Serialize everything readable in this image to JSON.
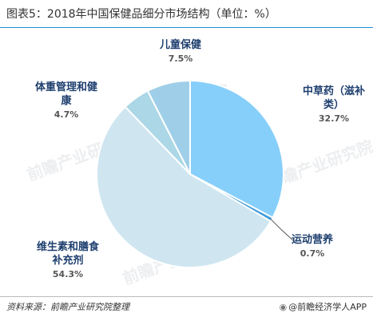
{
  "title": "图表5：2018年中国保健品细分市场结构（单位：%）",
  "chart_data": {
    "type": "pie",
    "title": "图表5：2018年中国保健品细分市场结构（单位：%）",
    "slices": [
      {
        "name": "中草药（滋补类）",
        "name_lines": [
          "中草药（滋补",
          "类）"
        ],
        "value": 32.7,
        "label": "32.7%",
        "color": "#86cffa"
      },
      {
        "name": "运动营养",
        "name_lines": [
          "运动营养"
        ],
        "value": 0.7,
        "label": "0.7%",
        "color": "#3d9bd9"
      },
      {
        "name": "维生素和膳食补充剂",
        "name_lines": [
          "维生素和膳食",
          "补充剂"
        ],
        "value": 54.3,
        "label": "54.3%",
        "color": "#cfe6f1"
      },
      {
        "name": "体重管理和健康",
        "name_lines": [
          "体重管理和健",
          "康"
        ],
        "value": 4.7,
        "label": "4.7%",
        "color": "#abd7e6"
      },
      {
        "name": "儿童保健",
        "name_lines": [
          "儿童保健"
        ],
        "value": 7.5,
        "label": "7.5%",
        "color": "#9fcfe8"
      }
    ],
    "legend": "none"
  },
  "watermark": "前瞻产业研究院",
  "source": "资料来源：前瞻产业研究院整理",
  "brand": "@前瞻经济学人APP",
  "colors": {
    "accent": "#1f8fd6",
    "label_name": "#1e3f6f"
  }
}
